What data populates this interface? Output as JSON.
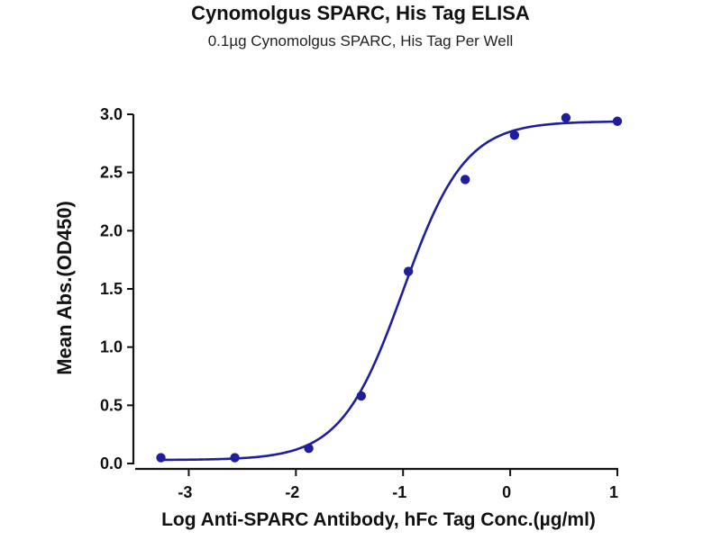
{
  "chart_data": {
    "type": "scatter",
    "title": "Cynomolgus SPARC, His Tag ELISA",
    "subtitle": "0.1µg Cynomolgus SPARC, His Tag Per Well",
    "xlabel": "Log Anti-SPARC Antibody, hFc Tag Conc.(µg/ml)",
    "ylabel": "Mean Abs.(OD450)",
    "xlim": [
      -3.5,
      1.0
    ],
    "ylim": [
      0.0,
      3.0
    ],
    "xticks": [
      "-3",
      "-2",
      "-1",
      "0",
      "1"
    ],
    "yticks": [
      "0.0",
      "0.5",
      "1.0",
      "1.5",
      "2.0",
      "2.5",
      "3.0"
    ],
    "grid": false,
    "color": "#1f1f9e",
    "series": [
      {
        "points": [
          {
            "x": -3.26,
            "y": 0.05
          },
          {
            "x": -2.57,
            "y": 0.05
          },
          {
            "x": -1.88,
            "y": 0.13
          },
          {
            "x": -1.39,
            "y": 0.58
          },
          {
            "x": -0.95,
            "y": 1.65
          },
          {
            "x": -0.42,
            "y": 2.44
          },
          {
            "x": 0.04,
            "y": 2.82
          },
          {
            "x": 0.52,
            "y": 2.97
          },
          {
            "x": 1.0,
            "y": 2.94
          }
        ],
        "fit": {
          "model": "4PL",
          "bottom": 0.03,
          "top": 2.94,
          "log_ec50": -1.0,
          "hill": 1.5
        }
      }
    ]
  }
}
